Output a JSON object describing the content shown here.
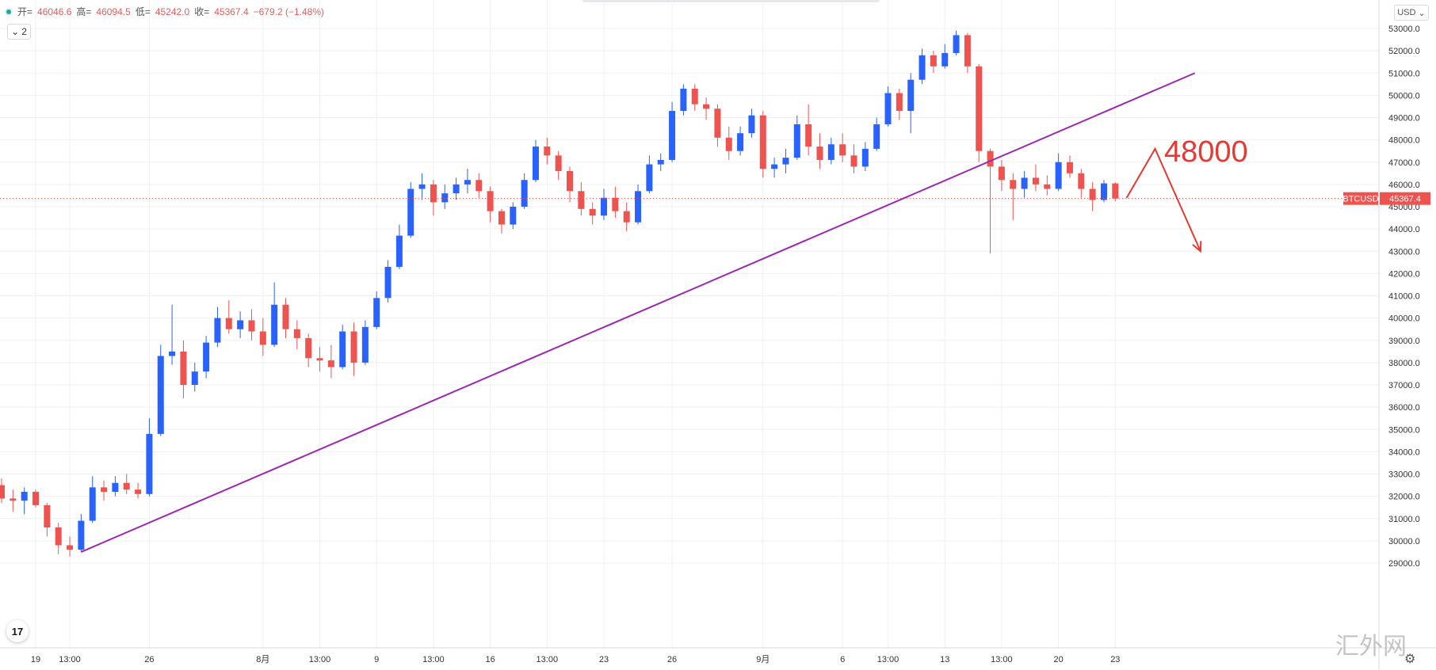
{
  "legend": {
    "open_label": "开=",
    "open": "46046.6",
    "high_label": "高=",
    "high": "46094.5",
    "low_label": "低=",
    "low": "45242.0",
    "close_label": "收=",
    "close": "45367.4",
    "change": "−679.2 (−1.48%)"
  },
  "collapse_label": "2",
  "currency": "USD",
  "symbol": "BTCUSD",
  "price_tag": "45367.4",
  "annotation_text": "48000",
  "logo_text": "17",
  "watermark": "汇外网",
  "colors": {
    "up": "#2962ff",
    "down": "#ef5350",
    "trend": "#9c27b0",
    "annotation": "#e53935",
    "last_price": "#ef5350"
  },
  "chart_data": {
    "type": "candlestick",
    "y_axis": {
      "min": 28500,
      "max": 53500,
      "ticks": [
        29000,
        30000,
        31000,
        32000,
        33000,
        34000,
        35000,
        36000,
        37000,
        38000,
        39000,
        40000,
        41000,
        42000,
        43000,
        44000,
        45000,
        46000,
        47000,
        48000,
        49000,
        50000,
        51000,
        52000,
        53000
      ],
      "tick_labels": [
        "29000.0",
        "30000.0",
        "31000.0",
        "32000.0",
        "33000.0",
        "34000.0",
        "35000.0",
        "36000.0",
        "37000.0",
        "38000.0",
        "39000.0",
        "40000.0",
        "41000.0",
        "42000.0",
        "43000.0",
        "44000.0",
        "45000.0",
        "46000.0",
        "47000.0",
        "48000.0",
        "49000.0",
        "50000.0",
        "51000.0",
        "52000.0",
        "53000.0"
      ]
    },
    "x_axis": {
      "labels": [
        {
          "text": "19",
          "t": 3
        },
        {
          "text": "13:00",
          "t": 6
        },
        {
          "text": "26",
          "t": 13
        },
        {
          "text": "8月",
          "t": 23
        },
        {
          "text": "13:00",
          "t": 28
        },
        {
          "text": "9",
          "t": 33
        },
        {
          "text": "13:00",
          "t": 38
        },
        {
          "text": "16",
          "t": 43
        },
        {
          "text": "13:00",
          "t": 48
        },
        {
          "text": "23",
          "t": 53
        },
        {
          "text": "26",
          "t": 59
        },
        {
          "text": "9月",
          "t": 67
        },
        {
          "text": "6",
          "t": 74
        },
        {
          "text": "13:00",
          "t": 78
        },
        {
          "text": "13",
          "t": 83
        },
        {
          "text": "13:00",
          "t": 88
        },
        {
          "text": "20",
          "t": 93
        },
        {
          "text": "23",
          "t": 98
        }
      ]
    },
    "candles": [
      {
        "t": 0,
        "o": 32500,
        "h": 32800,
        "l": 31700,
        "c": 31900
      },
      {
        "t": 1,
        "o": 31900,
        "h": 32300,
        "l": 31300,
        "c": 31800
      },
      {
        "t": 2,
        "o": 31800,
        "h": 32400,
        "l": 31200,
        "c": 32200
      },
      {
        "t": 3,
        "o": 32200,
        "h": 32300,
        "l": 31500,
        "c": 31600
      },
      {
        "t": 4,
        "o": 31600,
        "h": 31700,
        "l": 30200,
        "c": 30600
      },
      {
        "t": 5,
        "o": 30600,
        "h": 30800,
        "l": 29400,
        "c": 29800
      },
      {
        "t": 6,
        "o": 29800,
        "h": 30200,
        "l": 29300,
        "c": 29600
      },
      {
        "t": 7,
        "o": 29600,
        "h": 31200,
        "l": 29500,
        "c": 30900
      },
      {
        "t": 8,
        "o": 30900,
        "h": 32900,
        "l": 30800,
        "c": 32400
      },
      {
        "t": 9,
        "o": 32400,
        "h": 32700,
        "l": 31800,
        "c": 32200
      },
      {
        "t": 10,
        "o": 32200,
        "h": 32900,
        "l": 32000,
        "c": 32600
      },
      {
        "t": 11,
        "o": 32600,
        "h": 33000,
        "l": 32100,
        "c": 32300
      },
      {
        "t": 12,
        "o": 32300,
        "h": 32600,
        "l": 31900,
        "c": 32100
      },
      {
        "t": 13,
        "o": 32100,
        "h": 35500,
        "l": 32000,
        "c": 34800
      },
      {
        "t": 14,
        "o": 34800,
        "h": 38800,
        "l": 34700,
        "c": 38300
      },
      {
        "t": 15,
        "o": 38300,
        "h": 40600,
        "l": 37900,
        "c": 38500
      },
      {
        "t": 16,
        "o": 38500,
        "h": 39000,
        "l": 36400,
        "c": 37000
      },
      {
        "t": 17,
        "o": 37000,
        "h": 38000,
        "l": 36700,
        "c": 37600
      },
      {
        "t": 18,
        "o": 37600,
        "h": 39200,
        "l": 37300,
        "c": 38900
      },
      {
        "t": 19,
        "o": 38900,
        "h": 40500,
        "l": 38700,
        "c": 40000
      },
      {
        "t": 20,
        "o": 40000,
        "h": 40800,
        "l": 39300,
        "c": 39500
      },
      {
        "t": 21,
        "o": 39500,
        "h": 40300,
        "l": 39100,
        "c": 39900
      },
      {
        "t": 22,
        "o": 39900,
        "h": 40400,
        "l": 39000,
        "c": 39400
      },
      {
        "t": 23,
        "o": 39400,
        "h": 40000,
        "l": 38300,
        "c": 38800
      },
      {
        "t": 24,
        "o": 38800,
        "h": 41600,
        "l": 38700,
        "c": 40600
      },
      {
        "t": 25,
        "o": 40600,
        "h": 40900,
        "l": 39100,
        "c": 39500
      },
      {
        "t": 26,
        "o": 39500,
        "h": 39900,
        "l": 38600,
        "c": 39100
      },
      {
        "t": 27,
        "o": 39100,
        "h": 39300,
        "l": 37800,
        "c": 38200
      },
      {
        "t": 28,
        "o": 38200,
        "h": 38700,
        "l": 37600,
        "c": 38100
      },
      {
        "t": 29,
        "o": 38100,
        "h": 38800,
        "l": 37300,
        "c": 37800
      },
      {
        "t": 30,
        "o": 37800,
        "h": 39700,
        "l": 37700,
        "c": 39400
      },
      {
        "t": 31,
        "o": 39400,
        "h": 39800,
        "l": 37400,
        "c": 38000
      },
      {
        "t": 32,
        "o": 38000,
        "h": 39900,
        "l": 37900,
        "c": 39600
      },
      {
        "t": 33,
        "o": 39600,
        "h": 41200,
        "l": 39500,
        "c": 40900
      },
      {
        "t": 34,
        "o": 40900,
        "h": 42600,
        "l": 40700,
        "c": 42300
      },
      {
        "t": 35,
        "o": 42300,
        "h": 44200,
        "l": 42200,
        "c": 43700
      },
      {
        "t": 36,
        "o": 43700,
        "h": 46100,
        "l": 43600,
        "c": 45800
      },
      {
        "t": 37,
        "o": 45800,
        "h": 46500,
        "l": 45300,
        "c": 46000
      },
      {
        "t": 38,
        "o": 46000,
        "h": 46200,
        "l": 44600,
        "c": 45200
      },
      {
        "t": 39,
        "o": 45200,
        "h": 46000,
        "l": 44900,
        "c": 45600
      },
      {
        "t": 40,
        "o": 45600,
        "h": 46300,
        "l": 45300,
        "c": 46000
      },
      {
        "t": 41,
        "o": 46000,
        "h": 46700,
        "l": 45600,
        "c": 46200
      },
      {
        "t": 42,
        "o": 46200,
        "h": 46500,
        "l": 45400,
        "c": 45700
      },
      {
        "t": 43,
        "o": 45700,
        "h": 45900,
        "l": 44300,
        "c": 44800
      },
      {
        "t": 44,
        "o": 44800,
        "h": 44900,
        "l": 43800,
        "c": 44200
      },
      {
        "t": 45,
        "o": 44200,
        "h": 45200,
        "l": 44000,
        "c": 45000
      },
      {
        "t": 46,
        "o": 45000,
        "h": 46500,
        "l": 44900,
        "c": 46200
      },
      {
        "t": 47,
        "o": 46200,
        "h": 48000,
        "l": 46100,
        "c": 47700
      },
      {
        "t": 48,
        "o": 47700,
        "h": 48100,
        "l": 46900,
        "c": 47300
      },
      {
        "t": 49,
        "o": 47300,
        "h": 47500,
        "l": 46200,
        "c": 46600
      },
      {
        "t": 50,
        "o": 46600,
        "h": 46800,
        "l": 45200,
        "c": 45700
      },
      {
        "t": 51,
        "o": 45700,
        "h": 46100,
        "l": 44600,
        "c": 44900
      },
      {
        "t": 52,
        "o": 44900,
        "h": 45200,
        "l": 44200,
        "c": 44600
      },
      {
        "t": 53,
        "o": 44600,
        "h": 45800,
        "l": 44400,
        "c": 45400
      },
      {
        "t": 54,
        "o": 45400,
        "h": 45900,
        "l": 44500,
        "c": 44800
      },
      {
        "t": 55,
        "o": 44800,
        "h": 45200,
        "l": 43900,
        "c": 44300
      },
      {
        "t": 56,
        "o": 44300,
        "h": 46000,
        "l": 44200,
        "c": 45700
      },
      {
        "t": 57,
        "o": 45700,
        "h": 47300,
        "l": 45600,
        "c": 46900
      },
      {
        "t": 58,
        "o": 46900,
        "h": 47400,
        "l": 46600,
        "c": 47100
      },
      {
        "t": 59,
        "o": 47100,
        "h": 49700,
        "l": 47000,
        "c": 49300
      },
      {
        "t": 60,
        "o": 49300,
        "h": 50500,
        "l": 49100,
        "c": 50300
      },
      {
        "t": 61,
        "o": 50300,
        "h": 50500,
        "l": 49300,
        "c": 49600
      },
      {
        "t": 62,
        "o": 49600,
        "h": 49900,
        "l": 48900,
        "c": 49400
      },
      {
        "t": 63,
        "o": 49400,
        "h": 49600,
        "l": 47700,
        "c": 48100
      },
      {
        "t": 64,
        "o": 48100,
        "h": 48600,
        "l": 47100,
        "c": 47500
      },
      {
        "t": 65,
        "o": 47500,
        "h": 48600,
        "l": 47300,
        "c": 48300
      },
      {
        "t": 66,
        "o": 48300,
        "h": 49400,
        "l": 48100,
        "c": 49100
      },
      {
        "t": 67,
        "o": 49100,
        "h": 49300,
        "l": 46300,
        "c": 46700
      },
      {
        "t": 68,
        "o": 46700,
        "h": 47200,
        "l": 46300,
        "c": 46900
      },
      {
        "t": 69,
        "o": 46900,
        "h": 47600,
        "l": 46500,
        "c": 47200
      },
      {
        "t": 70,
        "o": 47200,
        "h": 49100,
        "l": 47100,
        "c": 48700
      },
      {
        "t": 71,
        "o": 48700,
        "h": 49600,
        "l": 47300,
        "c": 47700
      },
      {
        "t": 72,
        "o": 47700,
        "h": 48300,
        "l": 46700,
        "c": 47100
      },
      {
        "t": 73,
        "o": 47100,
        "h": 48100,
        "l": 46900,
        "c": 47800
      },
      {
        "t": 74,
        "o": 47800,
        "h": 48300,
        "l": 47000,
        "c": 47300
      },
      {
        "t": 75,
        "o": 47300,
        "h": 47800,
        "l": 46500,
        "c": 46800
      },
      {
        "t": 76,
        "o": 46800,
        "h": 47900,
        "l": 46600,
        "c": 47600
      },
      {
        "t": 77,
        "o": 47600,
        "h": 49000,
        "l": 47500,
        "c": 48700
      },
      {
        "t": 78,
        "o": 48700,
        "h": 50400,
        "l": 48600,
        "c": 50100
      },
      {
        "t": 79,
        "o": 50100,
        "h": 50300,
        "l": 48900,
        "c": 49300
      },
      {
        "t": 80,
        "o": 49300,
        "h": 51000,
        "l": 48300,
        "c": 50700
      },
      {
        "t": 81,
        "o": 50700,
        "h": 52100,
        "l": 50500,
        "c": 51800
      },
      {
        "t": 82,
        "o": 51800,
        "h": 52000,
        "l": 51000,
        "c": 51300
      },
      {
        "t": 83,
        "o": 51300,
        "h": 52300,
        "l": 51200,
        "c": 51900
      },
      {
        "t": 84,
        "o": 51900,
        "h": 52900,
        "l": 51800,
        "c": 52700
      },
      {
        "t": 85,
        "o": 52700,
        "h": 52800,
        "l": 51000,
        "c": 51300
      },
      {
        "t": 86,
        "o": 51300,
        "h": 51400,
        "l": 47000,
        "c": 47500
      },
      {
        "t": 87,
        "o": 47500,
        "h": 47600,
        "l": 42900,
        "c": 46800
      },
      {
        "t": 88,
        "o": 46800,
        "h": 47100,
        "l": 45700,
        "c": 46200
      },
      {
        "t": 89,
        "o": 46200,
        "h": 46500,
        "l": 44400,
        "c": 45800
      },
      {
        "t": 90,
        "o": 45800,
        "h": 46600,
        "l": 45400,
        "c": 46300
      },
      {
        "t": 91,
        "o": 46300,
        "h": 46900,
        "l": 45700,
        "c": 46000
      },
      {
        "t": 92,
        "o": 46000,
        "h": 46400,
        "l": 45500,
        "c": 45800
      },
      {
        "t": 93,
        "o": 45800,
        "h": 47400,
        "l": 45700,
        "c": 47000
      },
      {
        "t": 94,
        "o": 47000,
        "h": 47300,
        "l": 46300,
        "c": 46500
      },
      {
        "t": 95,
        "o": 46500,
        "h": 46700,
        "l": 45400,
        "c": 45800
      },
      {
        "t": 96,
        "o": 45800,
        "h": 46100,
        "l": 44800,
        "c": 45300
      },
      {
        "t": 97,
        "o": 45300,
        "h": 46200,
        "l": 45200,
        "c": 46046.6
      },
      {
        "t": 98,
        "o": 46046.6,
        "h": 46094.5,
        "l": 45242.0,
        "c": 45367.4
      }
    ],
    "last_price": 45367.4,
    "trend_line": {
      "p1": {
        "t": 7,
        "price": 29500
      },
      "p2": {
        "t": 105,
        "price": 51000
      }
    },
    "forecast_path": [
      {
        "t": 99,
        "price": 45400
      },
      {
        "t": 101.5,
        "price": 47600
      },
      {
        "t": 105.5,
        "price": 43000
      }
    ],
    "annotation": {
      "text_ref": "annotation_text",
      "t": 102.3,
      "price": 47600
    }
  }
}
